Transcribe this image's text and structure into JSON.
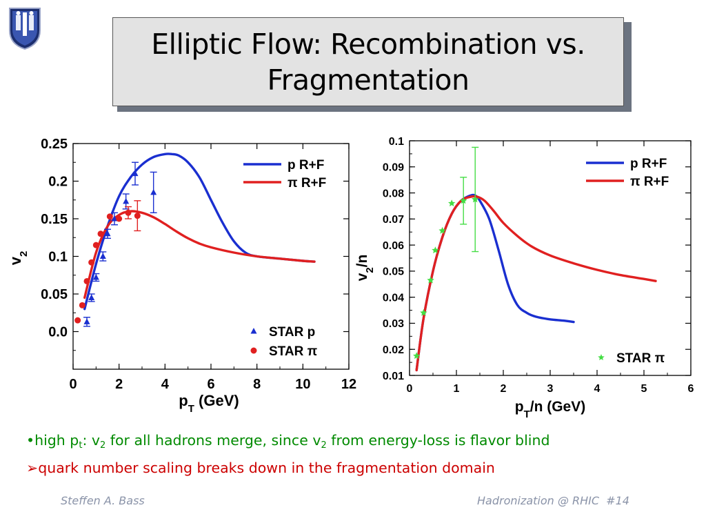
{
  "slide": {
    "title_line1": "Elliptic Flow: Recombination vs.",
    "title_line2": "Fragmentation",
    "footer_left": "Steffen A. Bass",
    "footer_right": "Hadronization @ RHIC  #14"
  },
  "bullets": {
    "b1_prefix": "•high p",
    "b1_sub_t": "t",
    "b1_mid": ": v",
    "b1_sub_2a": "2",
    "b1_text": " for all hadrons merge, since v",
    "b1_sub_2b": "2",
    "b1_end": " from energy-loss is flavor blind",
    "b2_marker": "➢",
    "b2_text": "quark number scaling breaks down in the fragmentation domain"
  },
  "colors": {
    "blue_curve": "#1a2fd0",
    "red_curve": "#e02020",
    "green_points": "#44dd44",
    "bullet1": "#008a00",
    "bullet2": "#cc0000"
  },
  "chart_data": [
    {
      "type": "line",
      "xlabel": "pT (GeV)",
      "ylabel": "v2",
      "xlim": [
        0,
        12
      ],
      "ylim": [
        -0.05,
        0.25
      ],
      "xticks": [
        0,
        2,
        4,
        6,
        8,
        10,
        12
      ],
      "yticks": [
        0.0,
        0.05,
        0.1,
        0.15,
        0.2,
        0.25
      ],
      "ytick_labels": [
        "0.0",
        "0.05",
        "0.1",
        "0.15",
        "0.2",
        "0.25"
      ],
      "legend_curves": [
        {
          "label": "p R+F",
          "color": "#1a2fd0"
        },
        {
          "label": "π R+F",
          "color": "#e02020"
        }
      ],
      "legend_points": [
        {
          "label": "STAR p",
          "color": "#1a2fd0",
          "marker": "triangle"
        },
        {
          "label": "STAR π",
          "color": "#e02020",
          "marker": "circle"
        }
      ],
      "series": [
        {
          "name": "p R+F",
          "x": [
            0.5,
            1.0,
            1.5,
            2.0,
            2.5,
            3.0,
            3.5,
            4.0,
            4.3,
            4.6,
            5.0,
            5.5,
            6.0,
            6.5,
            7.0,
            7.5,
            8.0,
            9.0,
            10.0,
            10.5
          ],
          "y": [
            0.03,
            0.09,
            0.14,
            0.18,
            0.205,
            0.222,
            0.232,
            0.236,
            0.236,
            0.234,
            0.225,
            0.205,
            0.175,
            0.145,
            0.12,
            0.105,
            0.1,
            0.097,
            0.094,
            0.093
          ]
        },
        {
          "name": "π R+F",
          "x": [
            0.5,
            1.0,
            1.5,
            2.0,
            2.5,
            3.0,
            3.5,
            4.0,
            4.5,
            5.0,
            5.5,
            6.0,
            7.0,
            8.0,
            9.0,
            10.0,
            10.5
          ],
          "y": [
            0.045,
            0.105,
            0.14,
            0.155,
            0.16,
            0.158,
            0.152,
            0.143,
            0.133,
            0.124,
            0.117,
            0.112,
            0.105,
            0.1,
            0.097,
            0.094,
            0.093
          ]
        }
      ],
      "points": [
        {
          "name": "STAR p",
          "x": [
            0.6,
            0.8,
            1.0,
            1.3,
            1.5,
            1.8,
            2.3,
            2.7,
            3.5
          ],
          "y": [
            0.013,
            0.045,
            0.072,
            0.1,
            0.13,
            0.15,
            0.173,
            0.21,
            0.185
          ],
          "err": [
            0.006,
            0.005,
            0.005,
            0.006,
            0.006,
            0.008,
            0.01,
            0.015,
            0.027
          ]
        },
        {
          "name": "STAR π",
          "x": [
            0.2,
            0.4,
            0.6,
            0.8,
            1.0,
            1.2,
            1.6,
            2.0,
            2.4,
            2.8
          ],
          "y": [
            0.015,
            0.035,
            0.067,
            0.092,
            0.115,
            0.13,
            0.153,
            0.15,
            0.158,
            0.154
          ],
          "err": [
            0,
            0,
            0,
            0,
            0,
            0,
            0,
            0,
            0.008,
            0.02
          ]
        }
      ]
    },
    {
      "type": "line",
      "xlabel": "pT/n (GeV)",
      "ylabel": "v2/n",
      "xlim": [
        0,
        6
      ],
      "ylim": [
        0.01,
        0.1
      ],
      "xticks": [
        0,
        1,
        2,
        3,
        4,
        5,
        6
      ],
      "yticks": [
        0.01,
        0.02,
        0.03,
        0.04,
        0.05,
        0.06,
        0.07,
        0.08,
        0.09,
        0.1
      ],
      "ytick_labels": [
        "0.01",
        "0.02",
        "0.03",
        "0.04",
        "0.05",
        "0.06",
        "0.07",
        "0.08",
        "0.09",
        "0.1"
      ],
      "legend_curves": [
        {
          "label": "p R+F",
          "color": "#1a2fd0"
        },
        {
          "label": "π R+F",
          "color": "#e02020"
        }
      ],
      "legend_points": [
        {
          "label": "STAR π",
          "color": "#44dd44",
          "marker": "star"
        }
      ],
      "series": [
        {
          "name": "p R+F",
          "x": [
            0.15,
            0.3,
            0.5,
            0.7,
            0.9,
            1.1,
            1.3,
            1.4,
            1.5,
            1.7,
            1.9,
            2.1,
            2.3,
            2.5,
            2.7,
            3.0,
            3.3,
            3.5
          ],
          "y": [
            0.012,
            0.032,
            0.05,
            0.063,
            0.072,
            0.077,
            0.079,
            0.079,
            0.077,
            0.07,
            0.058,
            0.045,
            0.037,
            0.034,
            0.0325,
            0.0315,
            0.031,
            0.0305
          ]
        },
        {
          "name": "π R+F",
          "x": [
            0.15,
            0.3,
            0.5,
            0.7,
            0.9,
            1.1,
            1.3,
            1.45,
            1.6,
            1.8,
            2.0,
            2.3,
            2.6,
            3.0,
            3.5,
            4.0,
            4.5,
            5.0,
            5.25
          ],
          "y": [
            0.012,
            0.032,
            0.05,
            0.063,
            0.072,
            0.077,
            0.0785,
            0.0785,
            0.077,
            0.073,
            0.0685,
            0.0635,
            0.0595,
            0.056,
            0.053,
            0.0505,
            0.0485,
            0.047,
            0.0462
          ]
        }
      ],
      "points": [
        {
          "name": "STAR π",
          "x": [
            0.15,
            0.3,
            0.45,
            0.55,
            0.7,
            0.9,
            1.15,
            1.4
          ],
          "y": [
            0.0175,
            0.034,
            0.0465,
            0.058,
            0.0655,
            0.076,
            0.077,
            0.0775
          ],
          "err": [
            0,
            0,
            0,
            0,
            0,
            0,
            0.009,
            0.02
          ]
        }
      ]
    }
  ]
}
